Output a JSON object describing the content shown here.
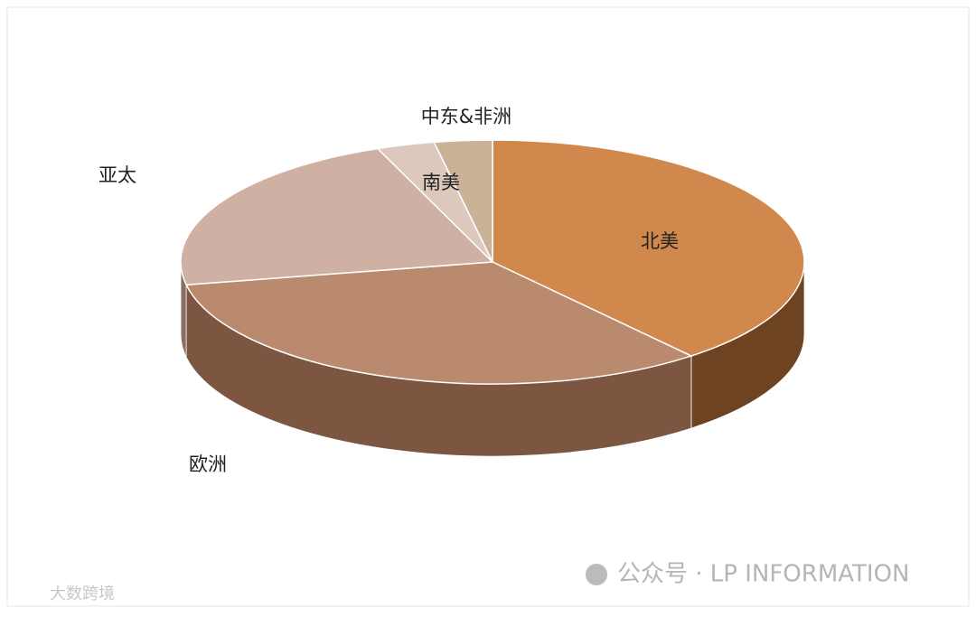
{
  "chart_data": {
    "type": "pie3d",
    "categories": [
      "北美",
      "欧洲",
      "亚太",
      "南美",
      "中东&非洲"
    ],
    "values": [
      39,
      33,
      22,
      3,
      3
    ],
    "colors": [
      "#d0884c",
      "#ba8a6f",
      "#cfb1a4",
      "#dcc8bc",
      "#c9b296"
    ],
    "side_colors": [
      "#6e4322",
      "#7d5641",
      "#8a7064",
      "#9a8a7e",
      "#8a7a66"
    ]
  },
  "watermarks": {
    "brand": "公众号 · LP INFORMATION",
    "corner": "大数跨境"
  }
}
